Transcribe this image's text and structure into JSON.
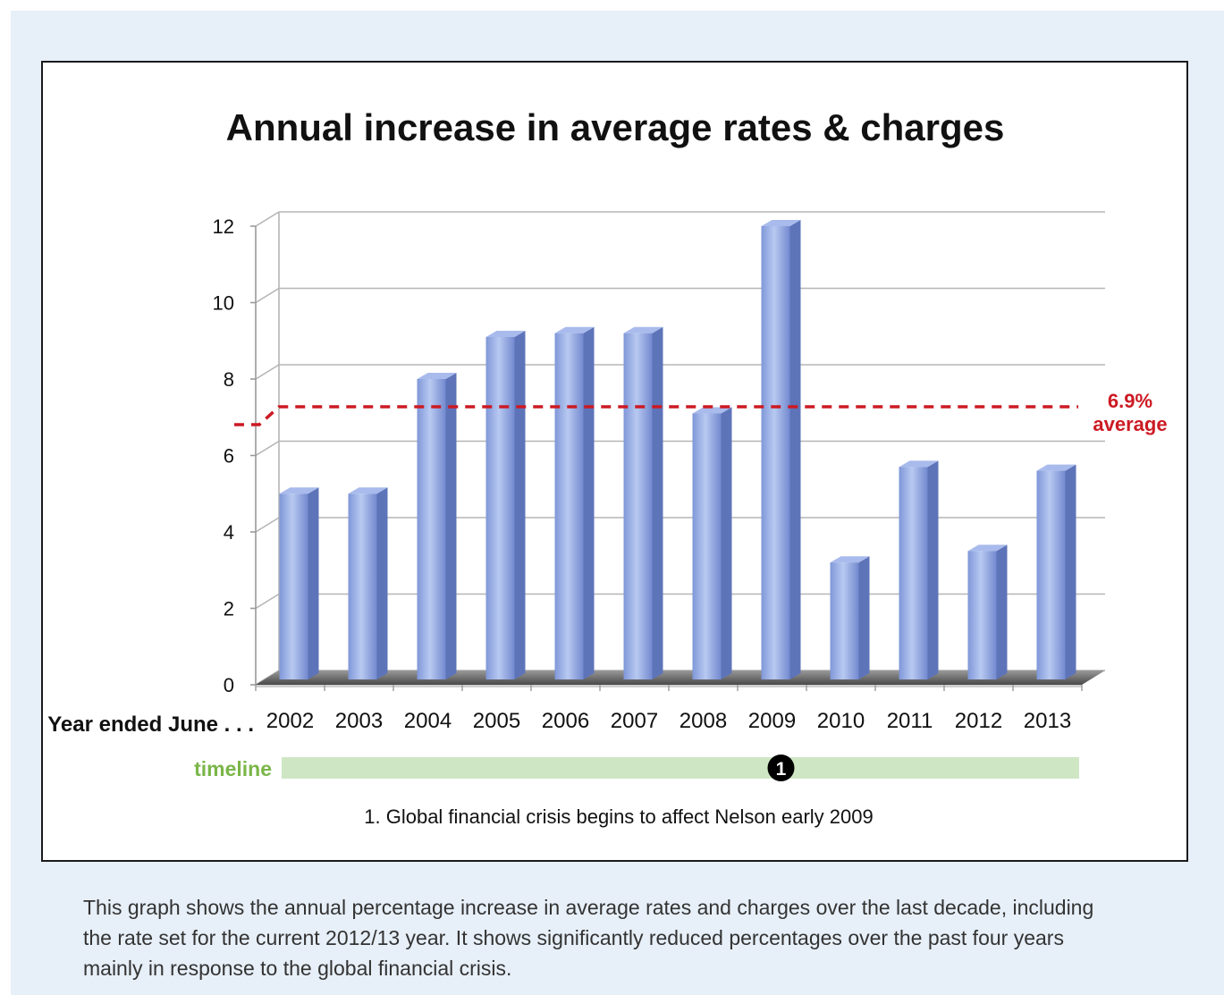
{
  "chart_data": {
    "type": "bar",
    "title": "Annual increase in average rates & charges",
    "xlabel": "Year ended June . . .",
    "ylabel": "",
    "ylim": [
      0,
      12
    ],
    "yticks": [
      0,
      2,
      4,
      6,
      8,
      10,
      12
    ],
    "grid": true,
    "categories": [
      "2002",
      "2003",
      "2004",
      "2005",
      "2006",
      "2007",
      "2008",
      "2009",
      "2010",
      "2011",
      "2012",
      "2013"
    ],
    "values": [
      5.0,
      5.0,
      8.0,
      9.1,
      9.2,
      9.2,
      7.1,
      12.0,
      3.2,
      5.7,
      3.5,
      5.6
    ],
    "reference_line": {
      "value": 6.9,
      "label_value": "6.9%",
      "label_text": "average",
      "color": "#cc1a23"
    },
    "bar_color": "#8ea5df",
    "timeline": {
      "label": "timeline",
      "label_color": "#7ab648",
      "bar_color": "#cfe6c4",
      "marker": {
        "number": "1",
        "category": "2009"
      },
      "note": "1. Global financial crisis begins to affect Nelson early 2009"
    }
  },
  "caption": {
    "lines": [
      "This graph shows the annual percentage increase in average rates and charges over the last decade, including",
      "the rate set for the current 2012/13 year. It shows significantly reduced percentages over the past four years",
      "mainly in response to the global financial crisis."
    ]
  }
}
